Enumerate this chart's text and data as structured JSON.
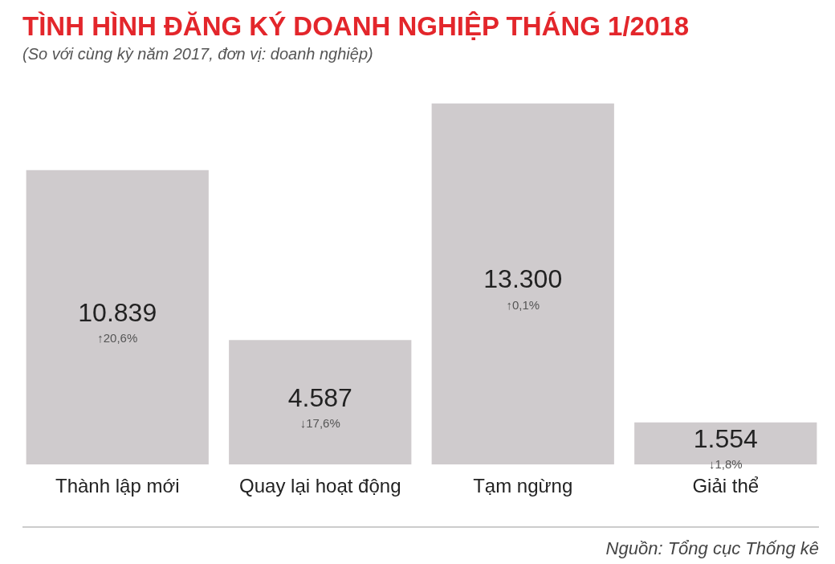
{
  "chart_data": {
    "type": "bar",
    "title": "TÌNH HÌNH ĐĂNG KÝ DOANH NGHIỆP THÁNG 1/2018",
    "subtitle": "(So với cùng kỳ năm 2017, đơn vị: doanh nghiệp)",
    "categories": [
      "Thành lập mới",
      "Quay lại hoạt động",
      "Tạm ngừng",
      "Giải thể"
    ],
    "values": [
      10839,
      4587,
      13300,
      1554
    ],
    "value_labels": [
      "10.839",
      "4.587",
      "13.300",
      "1.554"
    ],
    "color": "#cfcbcd",
    "annotations": [
      "↑20,6%",
      "↓17,6%",
      "↑0,1%",
      "↓1,8%",
      "Nguồn: Tổng cục Thống kê"
    ],
    "grid": false,
    "legend": false
  }
}
